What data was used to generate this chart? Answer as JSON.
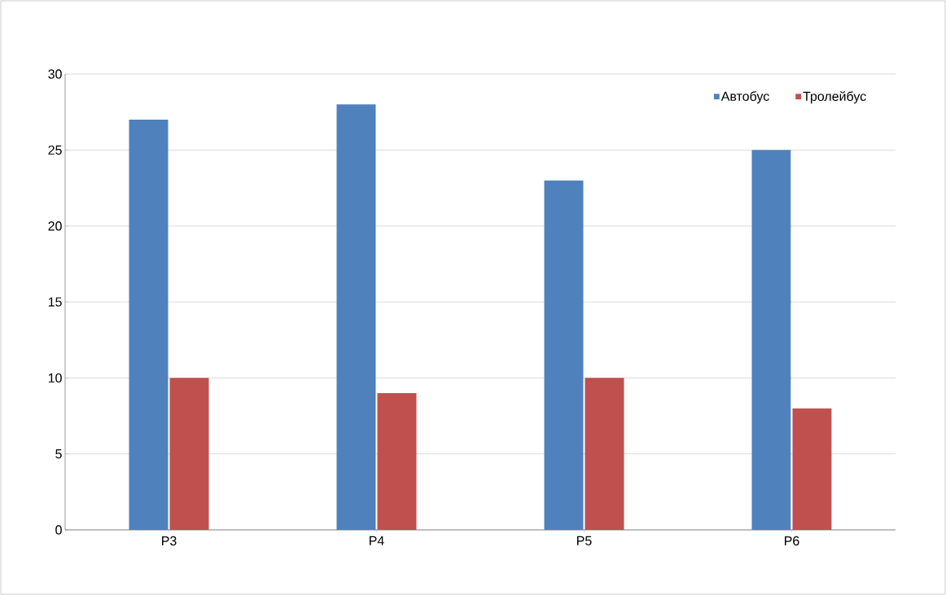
{
  "chart_data": {
    "type": "bar",
    "categories": [
      "Р3",
      "Р4",
      "Р5",
      "Р6"
    ],
    "series": [
      {
        "name": "Автобус",
        "color": "#4f81bd",
        "values": [
          27,
          28,
          23,
          25
        ]
      },
      {
        "name": "Тролейбус",
        "color": "#c0504d",
        "values": [
          10,
          9,
          10,
          8
        ]
      }
    ],
    "ylim": [
      0,
      30
    ],
    "yticks": [
      0,
      5,
      10,
      15,
      20,
      25,
      30
    ],
    "grid": "y",
    "legend": "top right"
  }
}
